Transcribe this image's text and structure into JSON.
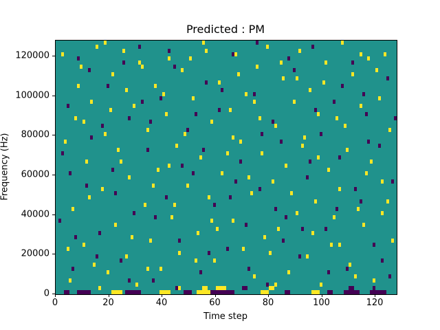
{
  "chart_data": {
    "type": "heatmap",
    "title": "Predicted : PM",
    "xlabel": "Time step",
    "ylabel": "Frequency (Hz)",
    "xlim": [
      0,
      128
    ],
    "ylim": [
      0,
      128000
    ],
    "grid_size": {
      "cols": 128,
      "rows": 64
    },
    "x_ticks": [
      0,
      20,
      40,
      60,
      80,
      100,
      120
    ],
    "x_tick_labels": [
      "0",
      "20",
      "40",
      "60",
      "80",
      "100",
      "120"
    ],
    "y_ticks": [
      0,
      20000,
      40000,
      60000,
      80000,
      100000,
      120000
    ],
    "y_tick_labels": [
      "0",
      "20000",
      "40000",
      "60000",
      "80000",
      "100000",
      "120000"
    ],
    "legend": "none",
    "grid": "off",
    "colors": {
      "background": "#20928c",
      "high": "#fde725",
      "low": "#440154",
      "axis": "#000000"
    },
    "cells": {
      "high": [
        [
          2,
          60
        ],
        [
          5,
          3
        ],
        [
          6,
          21
        ],
        [
          7,
          44
        ],
        [
          9,
          57
        ],
        [
          10,
          12
        ],
        [
          11,
          33
        ],
        [
          13,
          48
        ],
        [
          14,
          7
        ],
        [
          15,
          62
        ],
        [
          17,
          26
        ],
        [
          18,
          40
        ],
        [
          19,
          5
        ],
        [
          21,
          55
        ],
        [
          22,
          17
        ],
        [
          23,
          36
        ],
        [
          25,
          61
        ],
        [
          26,
          9
        ],
        [
          27,
          29
        ],
        [
          29,
          47
        ],
        [
          30,
          2
        ],
        [
          31,
          58
        ],
        [
          33,
          22
        ],
        [
          34,
          41
        ],
        [
          35,
          13
        ],
        [
          37,
          52
        ],
        [
          38,
          31
        ],
        [
          39,
          6
        ],
        [
          41,
          45
        ],
        [
          42,
          59
        ],
        [
          43,
          19
        ],
        [
          45,
          37
        ],
        [
          46,
          10
        ],
        [
          47,
          56
        ],
        [
          49,
          27
        ],
        [
          51,
          49
        ],
        [
          53,
          15
        ],
        [
          54,
          34
        ],
        [
          55,
          63
        ],
        [
          57,
          24
        ],
        [
          58,
          43
        ],
        [
          59,
          8
        ],
        [
          61,
          53
        ],
        [
          62,
          30
        ],
        [
          63,
          1
        ],
        [
          65,
          46
        ],
        [
          66,
          18
        ],
        [
          67,
          60
        ],
        [
          69,
          38
        ],
        [
          70,
          11
        ],
        [
          71,
          50
        ],
        [
          73,
          25
        ],
        [
          74,
          4
        ],
        [
          75,
          57
        ],
        [
          77,
          35
        ],
        [
          78,
          14
        ],
        [
          79,
          62
        ],
        [
          81,
          28
        ],
        [
          82,
          42
        ],
        [
          83,
          16
        ],
        [
          85,
          54
        ],
        [
          86,
          32
        ],
        [
          87,
          5
        ],
        [
          89,
          48
        ],
        [
          90,
          20
        ],
        [
          91,
          61
        ],
        [
          93,
          39
        ],
        [
          94,
          9
        ],
        [
          95,
          51
        ],
        [
          97,
          23
        ],
        [
          98,
          45
        ],
        [
          99,
          2
        ],
        [
          101,
          58
        ],
        [
          102,
          31
        ],
        [
          103,
          12
        ],
        [
          105,
          44
        ],
        [
          106,
          26
        ],
        [
          107,
          63
        ],
        [
          109,
          36
        ],
        [
          110,
          7
        ],
        [
          111,
          55
        ],
        [
          113,
          21
        ],
        [
          114,
          47
        ],
        [
          115,
          17
        ],
        [
          117,
          59
        ],
        [
          118,
          33
        ],
        [
          119,
          3
        ],
        [
          121,
          49
        ],
        [
          122,
          28
        ],
        [
          123,
          60
        ],
        [
          125,
          41
        ],
        [
          126,
          13
        ],
        [
          3,
          38
        ],
        [
          8,
          52
        ],
        [
          12,
          24
        ],
        [
          16,
          1
        ],
        [
          20,
          46
        ],
        [
          24,
          33
        ],
        [
          28,
          14
        ],
        [
          32,
          57
        ],
        [
          36,
          27
        ],
        [
          40,
          50
        ],
        [
          44,
          22
        ],
        [
          48,
          40
        ],
        [
          52,
          8
        ],
        [
          56,
          61
        ],
        [
          60,
          16
        ],
        [
          64,
          35
        ],
        [
          68,
          55
        ],
        [
          72,
          29
        ],
        [
          76,
          44
        ],
        [
          80,
          10
        ],
        [
          84,
          58
        ],
        [
          88,
          25
        ],
        [
          92,
          37
        ],
        [
          96,
          15
        ],
        [
          100,
          53
        ],
        [
          104,
          19
        ],
        [
          108,
          42
        ],
        [
          112,
          4
        ],
        [
          116,
          30
        ],
        [
          120,
          56
        ],
        [
          124,
          23
        ],
        [
          4,
          11
        ],
        [
          10,
          43
        ],
        [
          18,
          63
        ],
        [
          26,
          51
        ],
        [
          34,
          6
        ],
        [
          42,
          32
        ],
        [
          50,
          59
        ],
        [
          58,
          18
        ],
        [
          66,
          39
        ],
        [
          74,
          48
        ],
        [
          82,
          2
        ],
        [
          90,
          54
        ],
        [
          98,
          34
        ],
        [
          106,
          12
        ],
        [
          114,
          60
        ],
        [
          122,
          20
        ],
        [
          21,
          0
        ],
        [
          22,
          0
        ],
        [
          23,
          0
        ],
        [
          24,
          0
        ],
        [
          39,
          0
        ],
        [
          40,
          0
        ],
        [
          41,
          0
        ],
        [
          42,
          0
        ],
        [
          53,
          0
        ],
        [
          54,
          0
        ],
        [
          55,
          0
        ],
        [
          56,
          0
        ],
        [
          57,
          0
        ],
        [
          77,
          0
        ],
        [
          78,
          0
        ],
        [
          79,
          0
        ],
        [
          96,
          0
        ],
        [
          97,
          0
        ],
        [
          98,
          0
        ],
        [
          60,
          1
        ],
        [
          61,
          1
        ],
        [
          62,
          1
        ],
        [
          55,
          1
        ],
        [
          56,
          1
        ],
        [
          45,
          1
        ],
        [
          46,
          1
        ],
        [
          80,
          1
        ],
        [
          81,
          1
        ]
      ],
      "low": [
        [
          1,
          18
        ],
        [
          4,
          47
        ],
        [
          6,
          6
        ],
        [
          8,
          59
        ],
        [
          11,
          27
        ],
        [
          13,
          39
        ],
        [
          16,
          15
        ],
        [
          19,
          52
        ],
        [
          21,
          31
        ],
        [
          24,
          8
        ],
        [
          27,
          44
        ],
        [
          29,
          20
        ],
        [
          31,
          62
        ],
        [
          34,
          36
        ],
        [
          36,
          3
        ],
        [
          39,
          49
        ],
        [
          41,
          24
        ],
        [
          44,
          57
        ],
        [
          46,
          13
        ],
        [
          49,
          41
        ],
        [
          51,
          30
        ],
        [
          54,
          5
        ],
        [
          56,
          53
        ],
        [
          59,
          22
        ],
        [
          61,
          46
        ],
        [
          64,
          11
        ],
        [
          66,
          60
        ],
        [
          69,
          33
        ],
        [
          71,
          17
        ],
        [
          74,
          50
        ],
        [
          76,
          26
        ],
        [
          79,
          2
        ],
        [
          81,
          43
        ],
        [
          84,
          38
        ],
        [
          86,
          19
        ],
        [
          89,
          56
        ],
        [
          91,
          9
        ],
        [
          94,
          29
        ],
        [
          96,
          62
        ],
        [
          99,
          40
        ],
        [
          101,
          16
        ],
        [
          104,
          48
        ],
        [
          106,
          34
        ],
        [
          109,
          6
        ],
        [
          111,
          58
        ],
        [
          114,
          23
        ],
        [
          116,
          45
        ],
        [
          119,
          12
        ],
        [
          121,
          37
        ],
        [
          124,
          54
        ],
        [
          126,
          28
        ],
        [
          2,
          35
        ],
        [
          7,
          14
        ],
        [
          12,
          56
        ],
        [
          17,
          42
        ],
        [
          22,
          25
        ],
        [
          27,
          3
        ],
        [
          32,
          48
        ],
        [
          37,
          19
        ],
        [
          42,
          61
        ],
        [
          47,
          32
        ],
        [
          52,
          45
        ],
        [
          57,
          10
        ],
        [
          62,
          51
        ],
        [
          67,
          28
        ],
        [
          72,
          6
        ],
        [
          77,
          40
        ],
        [
          82,
          21
        ],
        [
          87,
          59
        ],
        [
          92,
          16
        ],
        [
          97,
          46
        ],
        [
          102,
          5
        ],
        [
          107,
          52
        ],
        [
          112,
          26
        ],
        [
          117,
          38
        ],
        [
          122,
          8
        ],
        [
          127,
          44
        ],
        [
          5,
          30
        ],
        [
          15,
          9
        ],
        [
          25,
          58
        ],
        [
          35,
          43
        ],
        [
          45,
          1
        ],
        [
          55,
          36
        ],
        [
          65,
          24
        ],
        [
          75,
          63
        ],
        [
          85,
          13
        ],
        [
          95,
          33
        ],
        [
          105,
          21
        ],
        [
          115,
          50
        ],
        [
          125,
          4
        ],
        [
          8,
          0
        ],
        [
          9,
          0
        ],
        [
          10,
          0
        ],
        [
          11,
          0
        ],
        [
          12,
          0
        ],
        [
          26,
          0
        ],
        [
          27,
          0
        ],
        [
          28,
          0
        ],
        [
          29,
          0
        ],
        [
          30,
          0
        ],
        [
          31,
          0
        ],
        [
          48,
          0
        ],
        [
          49,
          0
        ],
        [
          50,
          0
        ],
        [
          58,
          0
        ],
        [
          59,
          0
        ],
        [
          60,
          0
        ],
        [
          61,
          0
        ],
        [
          62,
          0
        ],
        [
          63,
          0
        ],
        [
          64,
          0
        ],
        [
          65,
          0
        ],
        [
          66,
          0
        ],
        [
          108,
          0
        ],
        [
          109,
          0
        ],
        [
          110,
          0
        ],
        [
          111,
          0
        ],
        [
          112,
          0
        ],
        [
          113,
          0
        ],
        [
          118,
          0
        ],
        [
          119,
          0
        ],
        [
          120,
          0
        ],
        [
          121,
          0
        ],
        [
          122,
          0
        ],
        [
          123,
          0
        ],
        [
          70,
          1
        ],
        [
          71,
          1
        ],
        [
          110,
          1
        ],
        [
          111,
          1
        ],
        [
          119,
          1
        ],
        [
          3,
          0
        ],
        [
          4,
          0
        ],
        [
          86,
          0
        ],
        [
          87,
          0
        ],
        [
          102,
          0
        ],
        [
          103,
          0
        ]
      ]
    }
  }
}
